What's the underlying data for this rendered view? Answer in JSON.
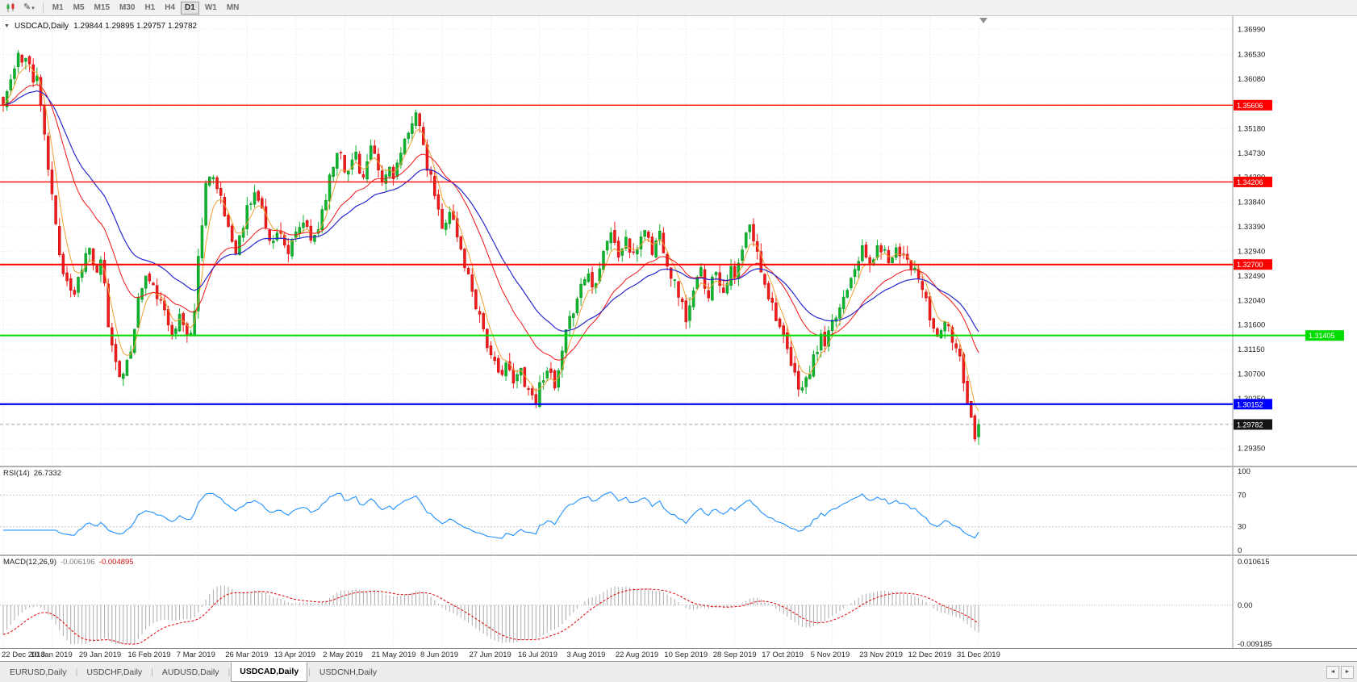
{
  "toolbar": {
    "timeframes": [
      "M1",
      "M5",
      "M15",
      "M30",
      "H1",
      "H4",
      "D1",
      "W1",
      "MN"
    ],
    "active_timeframe": "D1",
    "draw_glyph": "✎",
    "dropdown_caret": "▾"
  },
  "chart": {
    "symbol_title": "USDCAD,Daily",
    "ohlc_text": "1.29844 1.29895 1.29757 1.29782",
    "one_click_arrow": "▼"
  },
  "tabbar": {
    "items": [
      "EURUSD,Daily",
      "USDCHF,Daily",
      "AUDUSD,Daily",
      "USDCAD,Daily",
      "USDCNH,Daily"
    ],
    "active_index": 3,
    "separator": "|",
    "scroll_left_icon": "◄",
    "scroll_right_icon": "►"
  },
  "chart_data": {
    "type": "candlestick",
    "symbol": "USDCAD",
    "timeframe": "Daily",
    "ohlc_current": {
      "open": "1.29844",
      "high": "1.29895",
      "low": "1.29757",
      "close": "1.29782"
    },
    "x_tick_labels": [
      "22 Dec 2018",
      "10 Jan 2019",
      "29 Jan 2019",
      "16 Feb 2019",
      "7 Mar 2019",
      "26 Mar 2019",
      "13 Apr 2019",
      "2 May 2019",
      "21 May 2019",
      "8 Jun 2019",
      "27 Jun 2019",
      "16 Jul 2019",
      "3 Aug 2019",
      "22 Aug 2019",
      "10 Sep 2019",
      "28 Sep 2019",
      "17 Oct 2019",
      "5 Nov 2019",
      "23 Nov 2019",
      "12 Dec 2019",
      "31 Dec 2019"
    ],
    "candles_per_gridline": 13,
    "y_axis_ticks": [
      "1.36990",
      "1.36530",
      "1.36080",
      "1.35630",
      "1.35180",
      "1.34730",
      "1.34290",
      "1.33840",
      "1.33390",
      "1.32940",
      "1.32490",
      "1.32040",
      "1.31600",
      "1.31150",
      "1.30700",
      "1.30250",
      "1.29800",
      "1.29350"
    ],
    "closes": [
      1.356,
      1.3585,
      1.3605,
      1.3625,
      1.3648,
      1.3638,
      1.3655,
      1.3635,
      1.36,
      1.3615,
      1.356,
      1.35,
      1.3445,
      1.3395,
      1.334,
      1.3295,
      1.326,
      1.3245,
      1.3225,
      1.3218,
      1.3245,
      1.3268,
      1.3288,
      1.3298,
      1.327,
      1.3248,
      1.3272,
      1.323,
      1.316,
      1.312,
      1.3098,
      1.3075,
      1.3065,
      1.3085,
      1.3115,
      1.316,
      1.3205,
      1.323,
      1.3248,
      1.3238,
      1.3225,
      1.3215,
      1.3198,
      1.318,
      1.3162,
      1.315,
      1.3162,
      1.3172,
      1.316,
      1.3142,
      1.315,
      1.3185,
      1.328,
      1.335,
      1.3415,
      1.344,
      1.343,
      1.3405,
      1.3385,
      1.336,
      1.334,
      1.3315,
      1.33,
      1.3318,
      1.3338,
      1.3372,
      1.3385,
      1.34,
      1.339,
      1.3365,
      1.3345,
      1.3322,
      1.331,
      1.3325,
      1.3335,
      1.3308,
      1.3292,
      1.3305,
      1.3322,
      1.3335,
      1.3348,
      1.333,
      1.3312,
      1.3325,
      1.3338,
      1.337,
      1.3398,
      1.3425,
      1.3452,
      1.3475,
      1.3482,
      1.3448,
      1.3435,
      1.346,
      1.3475,
      1.3445,
      1.3428,
      1.3455,
      1.3478,
      1.3462,
      1.344,
      1.3418,
      1.3432,
      1.3448,
      1.3435,
      1.3452,
      1.347,
      1.3488,
      1.3505,
      1.3535,
      1.3555,
      1.352,
      1.3478,
      1.3445,
      1.3425,
      1.3398,
      1.3365,
      1.3332,
      1.3355,
      1.337,
      1.3348,
      1.332,
      1.3295,
      1.327,
      1.3248,
      1.3225,
      1.3198,
      1.3178,
      1.3155,
      1.3125,
      1.3098,
      1.3085,
      1.3068,
      1.308,
      1.3092,
      1.307,
      1.3052,
      1.3065,
      1.3078,
      1.3058,
      1.3042,
      1.3032,
      1.3022,
      1.3048,
      1.3068,
      1.3085,
      1.3062,
      1.3042,
      1.3072,
      1.3105,
      1.3142,
      1.3165,
      1.319,
      1.3215,
      1.3232,
      1.3245,
      1.3255,
      1.3228,
      1.3245,
      1.3272,
      1.3295,
      1.3318,
      1.333,
      1.3305,
      1.3285,
      1.3302,
      1.3318,
      1.3295,
      1.3282,
      1.3302,
      1.3322,
      1.3338,
      1.3315,
      1.3292,
      1.3312,
      1.3328,
      1.3302,
      1.3275,
      1.3252,
      1.3235,
      1.3218,
      1.3195,
      1.3172,
      1.3192,
      1.3215,
      1.3242,
      1.3258,
      1.3235,
      1.3218,
      1.3242,
      1.3262,
      1.324,
      1.3222,
      1.3245,
      1.3258,
      1.3242,
      1.3268,
      1.3295,
      1.3322,
      1.3338,
      1.3315,
      1.3288,
      1.3262,
      1.324,
      1.3215,
      1.3198,
      1.3178,
      1.3155,
      1.3132,
      1.3108,
      1.3085,
      1.3065,
      1.3052,
      1.3045,
      1.3058,
      1.3075,
      1.3095,
      1.3118,
      1.3135,
      1.3122,
      1.314,
      1.3158,
      1.3175,
      1.3192,
      1.3212,
      1.3232,
      1.3252,
      1.327,
      1.3285,
      1.3295,
      1.3282,
      1.327,
      1.3285,
      1.3295,
      1.3302,
      1.329,
      1.3278,
      1.3292,
      1.3302,
      1.3288,
      1.3295,
      1.3282,
      1.3268,
      1.3255,
      1.3242,
      1.3225,
      1.3198,
      1.3172,
      1.3152,
      1.3138,
      1.3155,
      1.3165,
      1.3148,
      1.3132,
      1.3118,
      1.3105,
      1.3062,
      1.3022,
      1.2988,
      1.2962,
      1.29782
    ],
    "last_price": 1.29782,
    "last_price_label": "1.29782",
    "noise_seed": 11,
    "close_noise": 0.0022,
    "gap_noise": 0.0009,
    "wick_noise": 0.0016,
    "colors": {
      "bull": "#0db52d",
      "bull_border": "#0a8a22",
      "bear": "#f21b1b",
      "bear_border": "#bd0f0f"
    },
    "moving_averages": [
      {
        "name": "ma-fast-orange-line",
        "period": 5,
        "color": "#f0a030",
        "width": 1
      },
      {
        "name": "ma-mid-red-line",
        "period": 20,
        "color": "#f01414",
        "width": 1
      },
      {
        "name": "ma-slow-blue-line",
        "period": 34,
        "color": "#2727cd",
        "width": 1.2
      }
    ],
    "horizontal_lines": [
      {
        "label": "1.35606",
        "value": 1.35606,
        "color": "#ff0000",
        "width": 1.4,
        "badge_at_edge": false
      },
      {
        "label": "1.34206",
        "value": 1.34206,
        "color": "#ff0000",
        "width": 1.4,
        "badge_at_edge": false
      },
      {
        "label": "1.32700",
        "value": 1.327,
        "color": "#ff0000",
        "width": 2,
        "badge_at_edge": false
      },
      {
        "label": "1.31405",
        "value": 1.31405,
        "color": "#00dc00",
        "width": 2,
        "badge_at_edge": true
      },
      {
        "label": "1.30152",
        "value": 1.30152,
        "color": "#0000ff",
        "width": 2.2,
        "badge_at_edge": false
      }
    ],
    "indicators": {
      "rsi": {
        "label": "RSI(14)",
        "value": "26.7332",
        "period": 14,
        "levels": [
          100,
          70,
          30,
          0
        ],
        "line_color": "#1e90ff"
      },
      "macd": {
        "label": "MACD(12,26,9)",
        "main_value": "-0.006196",
        "signal_value": "-0.004895",
        "fast": 12,
        "slow": 26,
        "signal": 9,
        "axis_top": "0.010615",
        "axis_zero": "0.00",
        "axis_bottom": "-0.009185",
        "scale_top": 0.010615,
        "scale_bottom": -0.009185,
        "histogram_color": "#ababab",
        "signal_color": "#e00000"
      }
    },
    "macd_seed_offsets": [
      -0.006,
      0.002
    ]
  }
}
